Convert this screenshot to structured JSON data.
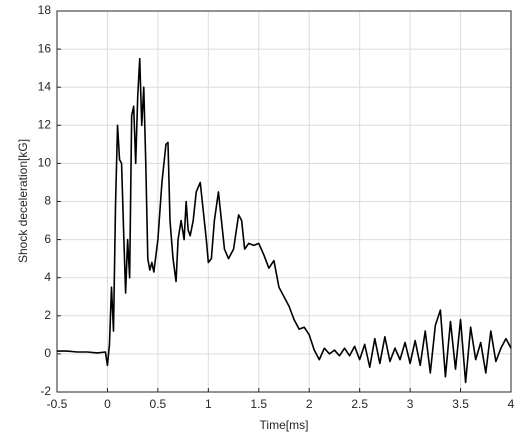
{
  "chart_data": {
    "type": "line",
    "x_label": "Time[ms]",
    "y_label": "Shock deceleration[kG]",
    "x": [
      -0.5,
      -0.4,
      -0.3,
      -0.2,
      -0.1,
      -0.02,
      0,
      0.02,
      0.04,
      0.06,
      0.08,
      0.1,
      0.12,
      0.14,
      0.16,
      0.18,
      0.2,
      0.22,
      0.24,
      0.26,
      0.28,
      0.3,
      0.32,
      0.34,
      0.36,
      0.38,
      0.4,
      0.42,
      0.44,
      0.46,
      0.5,
      0.54,
      0.58,
      0.6,
      0.62,
      0.65,
      0.68,
      0.7,
      0.73,
      0.76,
      0.78,
      0.8,
      0.82,
      0.85,
      0.88,
      0.92,
      0.95,
      0.98,
      1.0,
      1.03,
      1.06,
      1.1,
      1.13,
      1.16,
      1.2,
      1.25,
      1.3,
      1.33,
      1.36,
      1.4,
      1.45,
      1.5,
      1.55,
      1.6,
      1.65,
      1.7,
      1.75,
      1.8,
      1.85,
      1.9,
      1.95,
      2.0,
      2.05,
      2.1,
      2.15,
      2.2,
      2.25,
      2.3,
      2.35,
      2.4,
      2.45,
      2.5,
      2.55,
      2.6,
      2.65,
      2.7,
      2.75,
      2.8,
      2.85,
      2.9,
      2.95,
      3.0,
      3.05,
      3.1,
      3.15,
      3.2,
      3.25,
      3.3,
      3.35,
      3.4,
      3.45,
      3.5,
      3.55,
      3.6,
      3.65,
      3.7,
      3.75,
      3.8,
      3.85,
      3.9,
      3.95,
      4.0
    ],
    "series": [
      {
        "color": "#000000",
        "values": [
          0.15,
          0.15,
          0.1,
          0.1,
          0.05,
          0.1,
          -0.6,
          0.5,
          3.5,
          1.2,
          7.8,
          12.0,
          10.2,
          10.0,
          6.5,
          3.2,
          6.0,
          4.0,
          12.5,
          13.0,
          10.0,
          13.5,
          15.5,
          12.0,
          14.0,
          10.0,
          5.0,
          4.4,
          4.8,
          4.3,
          6.0,
          9.0,
          11.0,
          11.1,
          7.0,
          5.0,
          3.8,
          6.0,
          7.0,
          6.0,
          8.0,
          6.5,
          6.2,
          7.0,
          8.5,
          9.0,
          7.5,
          6.0,
          4.8,
          5.0,
          7.0,
          8.5,
          7.0,
          5.5,
          5.0,
          5.5,
          7.3,
          7.0,
          5.5,
          5.8,
          5.7,
          5.8,
          5.2,
          4.5,
          4.9,
          3.5,
          3.0,
          2.5,
          1.8,
          1.3,
          1.4,
          1.0,
          0.2,
          -0.3,
          0.3,
          0.0,
          0.2,
          -0.1,
          0.3,
          -0.1,
          0.4,
          -0.3,
          0.5,
          -0.7,
          0.8,
          -0.5,
          0.9,
          -0.4,
          0.3,
          -0.3,
          0.6,
          -0.5,
          0.7,
          -0.6,
          1.2,
          -1.0,
          1.5,
          2.3,
          -1.2,
          1.7,
          -0.8,
          1.8,
          -1.5,
          1.4,
          -0.3,
          0.6,
          -1.0,
          1.2,
          -0.4,
          0.3,
          0.8,
          0.3
        ]
      }
    ],
    "xlim": [
      -0.5,
      4
    ],
    "ylim": [
      -2,
      18
    ],
    "xticks": [
      -0.5,
      0,
      0.5,
      1,
      1.5,
      2,
      2.5,
      3,
      3.5,
      4
    ],
    "yticks": [
      -2,
      0,
      2,
      4,
      6,
      8,
      10,
      12,
      14,
      16,
      18
    ],
    "grid": true
  }
}
